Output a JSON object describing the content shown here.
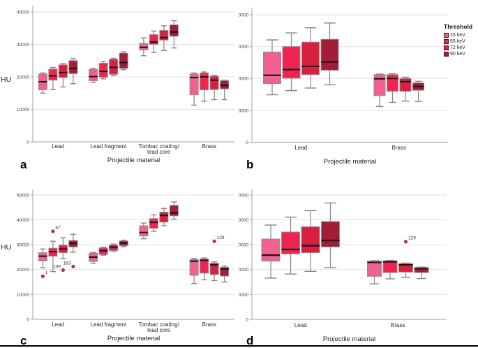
{
  "figure": {
    "ylabel": "HU",
    "xlabel": "Projectile material",
    "outlier_color": "#d62547",
    "legend": {
      "title": "Threshold",
      "position": "right",
      "items": [
        {
          "label": "20 keV",
          "color": "#f0618e"
        },
        {
          "label": "55 keV",
          "color": "#ef2450"
        },
        {
          "label": "72 keV",
          "color": "#d92040"
        },
        {
          "label": "90 keV",
          "color": "#a21e37"
        }
      ]
    }
  },
  "chart_data": [
    {
      "panel": "a",
      "type": "box",
      "ylabel": "HU",
      "xlabel": "Projectile material",
      "ylim": [
        0,
        42000
      ],
      "yticks": [
        0,
        10000,
        20000,
        30000,
        40000
      ],
      "grid": true,
      "categories": [
        "Lead",
        "Lead fragment",
        "Tombac coating/\nlead core",
        "Brass"
      ],
      "series": [
        {
          "name": "20 keV",
          "boxes": [
            {
              "lo": 15000,
              "q1": 16000,
              "med": 18500,
              "q3": 20900,
              "hi": 21200
            },
            {
              "lo": 18300,
              "q1": 18800,
              "med": 20100,
              "q3": 22300,
              "hi": 22600
            },
            {
              "lo": 26500,
              "q1": 28300,
              "med": 29100,
              "q3": 30300,
              "hi": 32000
            },
            {
              "lo": 11300,
              "q1": 14500,
              "med": 19800,
              "q3": 20900,
              "hi": 21200
            }
          ]
        },
        {
          "name": "55 keV",
          "boxes": [
            {
              "lo": 16100,
              "q1": 19000,
              "med": 20300,
              "q3": 22400,
              "hi": 22900
            },
            {
              "lo": 19400,
              "q1": 19900,
              "med": 21700,
              "q3": 24200,
              "hi": 24700
            },
            {
              "lo": 27500,
              "q1": 30000,
              "med": 30700,
              "q3": 33000,
              "hi": 34100
            },
            {
              "lo": 12500,
              "q1": 16000,
              "med": 20000,
              "q3": 21200,
              "hi": 21500
            }
          ]
        },
        {
          "name": "72 keV",
          "boxes": [
            {
              "lo": 16900,
              "q1": 19800,
              "med": 21300,
              "q3": 23700,
              "hi": 24100
            },
            {
              "lo": 20400,
              "q1": 20800,
              "med": 22900,
              "q3": 25400,
              "hi": 25700
            },
            {
              "lo": 28100,
              "q1": 31300,
              "med": 32100,
              "q3": 34300,
              "hi": 35700
            },
            {
              "lo": 13000,
              "q1": 16100,
              "med": 19000,
              "q3": 20200,
              "hi": 20500
            }
          ]
        },
        {
          "name": "90 keV",
          "boxes": [
            {
              "lo": 17900,
              "q1": 21000,
              "med": 22600,
              "q3": 25000,
              "hi": 25600
            },
            {
              "lo": 22200,
              "q1": 22600,
              "med": 24400,
              "q3": 27300,
              "hi": 27700
            },
            {
              "lo": 28900,
              "q1": 32500,
              "med": 33800,
              "q3": 36000,
              "hi": 37300
            },
            {
              "lo": 13000,
              "q1": 16300,
              "med": 17400,
              "q3": 18800,
              "hi": 19000
            }
          ]
        }
      ]
    },
    {
      "panel": "b",
      "type": "box",
      "ylabel": "",
      "xlabel": "Projectile material",
      "ylim": [
        0,
        42000
      ],
      "yticks": [
        0,
        10000,
        20000,
        30000,
        40000
      ],
      "grid": true,
      "categories": [
        "Lead",
        "Brass"
      ],
      "series": [
        {
          "name": "20 keV",
          "boxes": [
            {
              "lo": 14900,
              "q1": 18400,
              "med": 21000,
              "q3": 28300,
              "hi": 32100
            },
            {
              "lo": 11200,
              "q1": 14600,
              "med": 19900,
              "q3": 21200,
              "hi": 21400
            }
          ]
        },
        {
          "name": "55 keV",
          "boxes": [
            {
              "lo": 16200,
              "q1": 20100,
              "med": 22800,
              "q3": 30000,
              "hi": 34300
            },
            {
              "lo": 12500,
              "q1": 16000,
              "med": 20000,
              "q3": 21200,
              "hi": 21500
            }
          ]
        },
        {
          "name": "72 keV",
          "boxes": [
            {
              "lo": 17000,
              "q1": 21200,
              "med": 23800,
              "q3": 31400,
              "hi": 35900
            },
            {
              "lo": 12900,
              "q1": 16000,
              "med": 19000,
              "q3": 20000,
              "hi": 20400
            }
          ]
        },
        {
          "name": "90 keV",
          "boxes": [
            {
              "lo": 18000,
              "q1": 22600,
              "med": 25200,
              "q3": 32300,
              "hi": 37400
            },
            {
              "lo": 12800,
              "q1": 16300,
              "med": 17500,
              "q3": 18600,
              "hi": 19100
            }
          ]
        }
      ]
    },
    {
      "panel": "c",
      "type": "box",
      "ylabel": "HU",
      "xlabel": "Projectile material",
      "ylim": [
        0,
        52000
      ],
      "yticks": [
        0,
        10000,
        20000,
        30000,
        40000,
        50000
      ],
      "grid": true,
      "categories": [
        "Lead",
        "Lead fragment",
        "Tombac coating/\nlead core",
        "Brass"
      ],
      "series": [
        {
          "name": "20 keV",
          "boxes": [
            {
              "lo": 20700,
              "q1": 23500,
              "med": 25400,
              "q3": 26800,
              "hi": 28300,
              "outliers": [
                {
                  "label": "1",
                  "value": 17300,
                  "side": "right"
                }
              ]
            },
            {
              "lo": 22600,
              "q1": 23300,
              "med": 25000,
              "q3": 26600,
              "hi": 26900
            },
            {
              "lo": 32400,
              "q1": 33500,
              "med": 34900,
              "q3": 37600,
              "hi": 38700
            },
            {
              "lo": 14400,
              "q1": 17700,
              "med": 23400,
              "q3": 24000,
              "hi": 24500
            }
          ]
        },
        {
          "name": "55 keV",
          "boxes": [
            {
              "lo": 19200,
              "q1": 25400,
              "med": 27200,
              "q3": 28600,
              "hi": 31400,
              "outliers": [
                {
                  "label": "67",
                  "value": 35400,
                  "side": "right"
                }
              ]
            },
            {
              "lo": 25800,
              "q1": 26100,
              "med": 27600,
              "q3": 28700,
              "hi": 29000
            },
            {
              "lo": 35400,
              "q1": 36600,
              "med": 39000,
              "q3": 40500,
              "hi": 42000
            },
            {
              "lo": 15900,
              "q1": 18600,
              "med": 23700,
              "q3": 24300,
              "hi": 24700
            }
          ]
        },
        {
          "name": "72 keV",
          "boxes": [
            {
              "lo": 24400,
              "q1": 26800,
              "med": 28300,
              "q3": 29800,
              "hi": 32800,
              "outliers": [
                {
                  "label": "109",
                  "value": 19800,
                  "side": "left"
                }
              ]
            },
            {
              "lo": 27300,
              "q1": 27700,
              "med": 29000,
              "q3": 29900,
              "hi": 30300
            },
            {
              "lo": 37600,
              "q1": 39100,
              "med": 41800,
              "q3": 43100,
              "hi": 44600
            },
            {
              "lo": 15600,
              "q1": 18000,
              "med": 21900,
              "q3": 22600,
              "hi": 23100,
              "outliers": [
                {
                  "label": "129",
                  "value": 31400,
                  "side": "right"
                }
              ]
            }
          ]
        },
        {
          "name": "90 keV",
          "boxes": [
            {
              "lo": 27000,
              "q1": 29100,
              "med": 30500,
              "q3": 31700,
              "hi": 34200,
              "outliers": [
                {
                  "label": "163",
                  "value": 21200,
                  "side": "left"
                }
              ]
            },
            {
              "lo": 29200,
              "q1": 29600,
              "med": 30700,
              "q3": 31500,
              "hi": 31800
            },
            {
              "lo": 40300,
              "q1": 41600,
              "med": 42800,
              "q3": 45800,
              "hi": 47200
            },
            {
              "lo": 15000,
              "q1": 17400,
              "med": 20300,
              "q3": 20900,
              "hi": 21400
            }
          ]
        }
      ]
    },
    {
      "panel": "d",
      "type": "box",
      "ylabel": "",
      "xlabel": "Projectile material",
      "ylim": [
        0,
        52000
      ],
      "yticks": [
        0,
        10000,
        20000,
        30000,
        40000,
        50000
      ],
      "grid": true,
      "categories": [
        "Lead",
        "Brass"
      ],
      "series": [
        {
          "name": "20 keV",
          "boxes": [
            {
              "lo": 16600,
              "q1": 23400,
              "med": 25800,
              "q3": 32300,
              "hi": 37900
            },
            {
              "lo": 14300,
              "q1": 17300,
              "med": 22900,
              "q3": 23400,
              "hi": 23600
            }
          ]
        },
        {
          "name": "55 keV",
          "boxes": [
            {
              "lo": 18200,
              "q1": 26300,
              "med": 28100,
              "q3": 35100,
              "hi": 41100
            },
            {
              "lo": 16300,
              "q1": 18800,
              "med": 23100,
              "q3": 23500,
              "hi": 23700
            }
          ]
        },
        {
          "name": "72 keV",
          "boxes": [
            {
              "lo": 19300,
              "q1": 26800,
              "med": 29600,
              "q3": 37200,
              "hi": 43700
            },
            {
              "lo": 16900,
              "q1": 19000,
              "med": 21900,
              "q3": 22400,
              "hi": 22600,
              "outliers": [
                {
                  "label": "129",
                  "value": 31200,
                  "side": "right"
                }
              ]
            }
          ]
        },
        {
          "name": "90 keV",
          "boxes": [
            {
              "lo": 20800,
              "q1": 29100,
              "med": 31700,
              "q3": 39300,
              "hi": 46800
            },
            {
              "lo": 16400,
              "q1": 18800,
              "med": 20400,
              "q3": 20800,
              "hi": 21000
            }
          ]
        }
      ]
    }
  ]
}
